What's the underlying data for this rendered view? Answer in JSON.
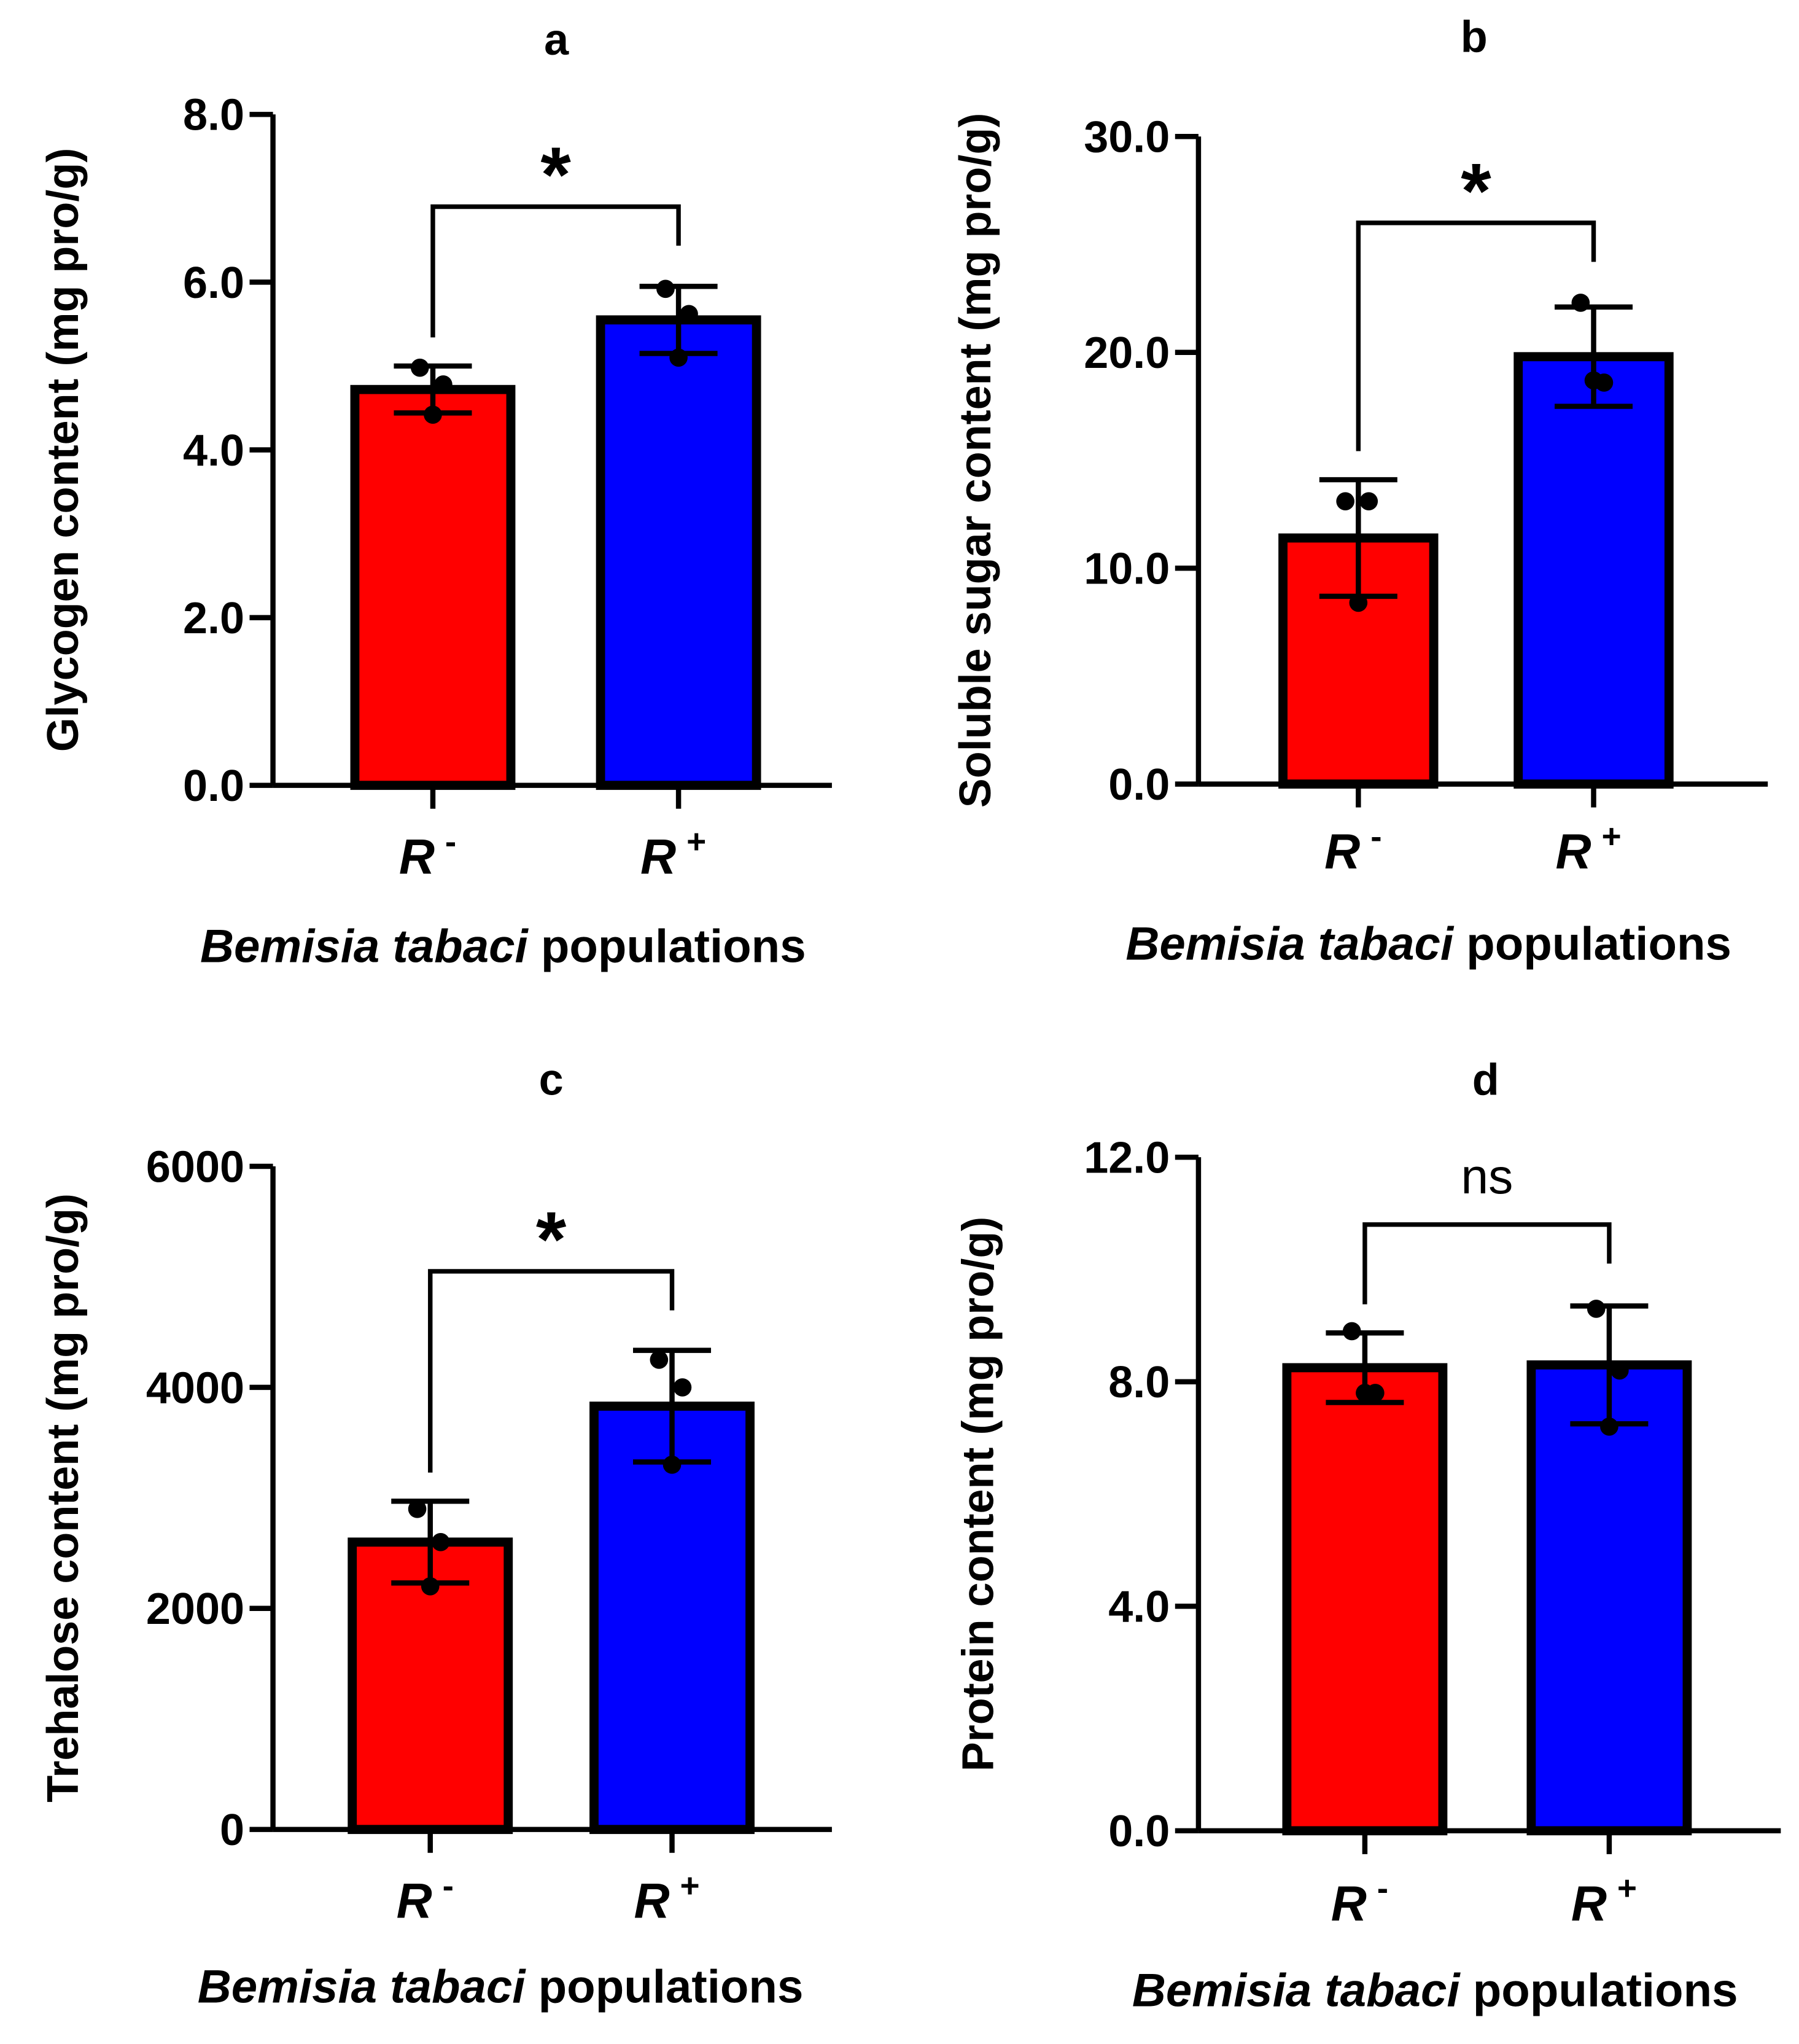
{
  "colors": {
    "r_minus": "#ff0000",
    "r_plus": "#0000ff",
    "outline": "#000000"
  },
  "chart_data": [
    {
      "type": "bar",
      "panel_label": "a",
      "categories": [
        "R",
        "R"
      ],
      "category_superscripts": [
        "-",
        "+"
      ],
      "ylabel": "Glycogen content (mg pro/g)",
      "xlabel_italic": "Bemisia tabaci",
      "xlabel_rest": " populations",
      "ylim": [
        0,
        8
      ],
      "yticks": [
        0,
        2,
        4,
        6,
        8
      ],
      "ytick_labels": [
        "0.0",
        "2.0",
        "4.0",
        "6.0",
        "8.0"
      ],
      "means": [
        4.72,
        5.55
      ],
      "sd": [
        0.28,
        0.4
      ],
      "points": [
        [
          4.98,
          4.78,
          4.42
        ],
        [
          5.92,
          5.62,
          5.1
        ]
      ],
      "significance": "*",
      "bracket_y": 6.9
    },
    {
      "type": "bar",
      "panel_label": "b",
      "categories": [
        "R",
        "R"
      ],
      "category_superscripts": [
        "-",
        "+"
      ],
      "ylabel": "Soluble sugar content (mg pro/g)",
      "xlabel_italic": "Bemisia tabaci",
      "xlabel_rest": " populations",
      "ylim": [
        0,
        30
      ],
      "yticks": [
        0,
        10,
        20,
        30
      ],
      "ytick_labels": [
        "0.0",
        "10.0",
        "20.0",
        "30.0"
      ],
      "means": [
        11.4,
        19.8
      ],
      "sd": [
        2.7,
        2.3
      ],
      "points": [
        [
          13.1,
          13.1,
          8.4
        ],
        [
          22.3,
          18.6,
          18.7
        ]
      ],
      "significance": "*",
      "bracket_y": 26
    },
    {
      "type": "bar",
      "panel_label": "c",
      "categories": [
        "R",
        "R"
      ],
      "category_superscripts": [
        "-",
        "+"
      ],
      "ylabel": "Trehalose content (mg pro/g)",
      "xlabel_italic": "Bemisia tabaci",
      "xlabel_rest": " populations",
      "ylim": [
        0,
        6000
      ],
      "yticks": [
        0,
        2000,
        4000,
        6000
      ],
      "ytick_labels": [
        "0",
        "2000",
        "4000",
        "6000"
      ],
      "means": [
        2600,
        3830
      ],
      "sd": [
        370,
        505
      ],
      "points": [
        [
          2900,
          2600,
          2200
        ],
        [
          4250,
          4000,
          3300
        ]
      ],
      "significance": "*",
      "bracket_y": 5050
    },
    {
      "type": "bar",
      "panel_label": "d",
      "categories": [
        "R",
        "R"
      ],
      "category_superscripts": [
        "-",
        "+"
      ],
      "ylabel": "Protein content (mg pro/g)",
      "xlabel_italic": "Bemisia tabaci",
      "xlabel_rest": " populations",
      "ylim": [
        0,
        12
      ],
      "yticks": [
        0,
        4,
        8,
        12
      ],
      "ytick_labels": [
        "0.0",
        "4.0",
        "8.0",
        "12.0"
      ],
      "means": [
        8.25,
        8.3
      ],
      "sd": [
        0.62,
        1.05
      ],
      "points": [
        [
          8.9,
          7.8,
          7.8
        ],
        [
          9.3,
          8.2,
          7.2
        ]
      ],
      "significance": "ns",
      "bracket_y": 10.8
    }
  ]
}
